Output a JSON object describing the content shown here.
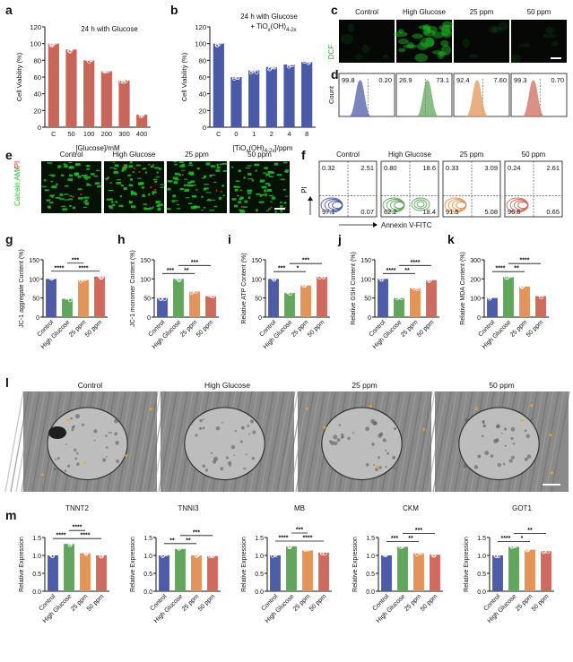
{
  "colors": {
    "red_bar": "#c8665a",
    "blue_bar": "#4a5aa6",
    "control": "#4e5ca8",
    "high_glucose": "#62a65e",
    "ppm25": "#e3945a",
    "ppm50": "#cf6b5e",
    "calcein_green": "#21c229",
    "pi_red": "#d82a2a"
  },
  "panel_letters": {
    "a": "a",
    "b": "b",
    "c": "c",
    "d": "d",
    "e": "e",
    "f": "f",
    "g": "g",
    "h": "h",
    "i": "i",
    "j": "j",
    "k": "k",
    "l": "l",
    "m": "m"
  },
  "groups": [
    "Control",
    "High Glucose",
    "25 ppm",
    "50 ppm"
  ],
  "panel_c": {
    "stain_label": "DCF"
  },
  "panel_d": {
    "ylabel": "Count",
    "values": [
      {
        "left": "99.8",
        "right": "0.20"
      },
      {
        "left": "26.9",
        "right": "73.1"
      },
      {
        "left": "92.4",
        "right": "7.60"
      },
      {
        "left": "99.3",
        "right": "0.70"
      }
    ]
  },
  "panel_e": {
    "stain_label_green": "Calcein AM",
    "stain_sep": "/",
    "stain_label_red": "PI"
  },
  "panel_f": {
    "ylabel": "PI",
    "xlabel": "Annexin V-FITC",
    "quadrants": [
      {
        "ul": "0.32",
        "ur": "2.51",
        "ll": "97.1",
        "lr": "0.07"
      },
      {
        "ul": "0.80",
        "ur": "18.6",
        "ll": "62.2",
        "lr": "18.4"
      },
      {
        "ul": "0.33",
        "ur": "3.09",
        "ll": "91.5",
        "lr": "5.08"
      },
      {
        "ul": "0.24",
        "ur": "2.61",
        "ll": "96.5",
        "lr": "0.65"
      }
    ]
  },
  "panel_l": {
    "labels": [
      "Control",
      "High Glucose",
      "25 ppm",
      "50 ppm"
    ]
  },
  "chart_data": [
    {
      "id": "a",
      "type": "bar",
      "categories": [
        "C",
        "50",
        "100",
        "200",
        "300",
        "400"
      ],
      "values": [
        100,
        93,
        80,
        67,
        56,
        15
      ],
      "annotation": "24 h with Glucose",
      "xlabel": "[Glucose]/mM",
      "ylabel": "Cell Viability (%)",
      "ylim": [
        0,
        120
      ],
      "yticks": [
        0,
        20,
        40,
        60,
        80,
        100,
        120
      ]
    },
    {
      "id": "b",
      "type": "bar",
      "categories": [
        "C",
        "0",
        "1",
        "2",
        "4",
        "8"
      ],
      "values": [
        100,
        60,
        68,
        72,
        75,
        78
      ],
      "annotation_line1": "24 h with Glucose",
      "annotation_line2": "+ TiO",
      "annotation_line2_sub": "x",
      "annotation_line2_tail": "(OH)",
      "annotation_line2_sub2": "4-2x",
      "xlabel": "[TiO",
      "xlabel_sub": "x",
      "xlabel_mid": "(OH)",
      "xlabel_sub2": "4-2x",
      "xlabel_tail": "]/ppm",
      "ylabel": "Cell Viability (%)",
      "ylim": [
        0,
        120
      ],
      "yticks": [
        0,
        20,
        40,
        60,
        80,
        100,
        120
      ]
    },
    {
      "id": "g",
      "type": "bar",
      "categories": [
        "Control",
        "High Glucose",
        "25 ppm",
        "50 ppm"
      ],
      "values": [
        100,
        48,
        97,
        106
      ],
      "ylabel": "JC-1 aggregate Content (%)",
      "ylim": [
        0,
        150
      ],
      "yticks": [
        0,
        50,
        100,
        150
      ],
      "sig": [
        {
          "from": 0,
          "to": 1,
          "label": "****",
          "level": 0
        },
        {
          "from": 1,
          "to": 3,
          "label": "****",
          "level": 0
        },
        {
          "from": 1,
          "to": 2,
          "label": "***",
          "level": 1
        }
      ]
    },
    {
      "id": "h",
      "type": "bar",
      "categories": [
        "Control",
        "High Glucose",
        "25 ppm",
        "50 ppm"
      ],
      "values": [
        50,
        100,
        67,
        55
      ],
      "ylabel": "JC-1 monomer Content (%)",
      "ylim": [
        0,
        150
      ],
      "yticks": [
        0,
        50,
        100,
        150
      ],
      "sig": [
        {
          "from": 0,
          "to": 1,
          "label": "***",
          "level": 0
        },
        {
          "from": 1,
          "to": 2,
          "label": "**",
          "level": 0
        },
        {
          "from": 1,
          "to": 3,
          "label": "***",
          "level": 1
        }
      ]
    },
    {
      "id": "i",
      "type": "bar",
      "categories": [
        "Control",
        "High Glucose",
        "25 ppm",
        "50 ppm"
      ],
      "values": [
        100,
        63,
        83,
        105
      ],
      "ylabel": "Relative ATP Content (%)",
      "ylim": [
        0,
        150
      ],
      "yticks": [
        0,
        50,
        100,
        150
      ],
      "sig": [
        {
          "from": 0,
          "to": 1,
          "label": "***",
          "level": 0
        },
        {
          "from": 1,
          "to": 2,
          "label": "*",
          "level": 0
        },
        {
          "from": 1,
          "to": 3,
          "label": "***",
          "level": 1
        }
      ]
    },
    {
      "id": "j",
      "type": "bar",
      "categories": [
        "Control",
        "High Glucose",
        "25 ppm",
        "50 ppm"
      ],
      "values": [
        100,
        50,
        75,
        97
      ],
      "ylabel": "Relative GSH Content (%)",
      "ylim": [
        0,
        150
      ],
      "yticks": [
        0,
        50,
        100,
        150
      ],
      "sig": [
        {
          "from": 0,
          "to": 1,
          "label": "****",
          "level": 0
        },
        {
          "from": 1,
          "to": 2,
          "label": "**",
          "level": 0
        },
        {
          "from": 1,
          "to": 3,
          "label": "****",
          "level": 1
        }
      ]
    },
    {
      "id": "k",
      "type": "bar",
      "categories": [
        "Control",
        "High Glucose",
        "25 ppm",
        "50 ppm"
      ],
      "values": [
        100,
        210,
        160,
        110
      ],
      "ylabel": "Relative MDA Content (%)",
      "ylim": [
        0,
        300
      ],
      "yticks": [
        0,
        100,
        200,
        300
      ],
      "sig": [
        {
          "from": 0,
          "to": 1,
          "label": "****",
          "level": 0
        },
        {
          "from": 1,
          "to": 2,
          "label": "**",
          "level": 0
        },
        {
          "from": 1,
          "to": 3,
          "label": "****",
          "level": 1
        }
      ]
    },
    {
      "id": "m1",
      "type": "bar",
      "title": "TNNT2",
      "categories": [
        "Control",
        "High Glucose",
        "25 ppm",
        "50 ppm"
      ],
      "values": [
        1.0,
        1.32,
        1.06,
        1.0
      ],
      "ylabel": "Relative Expression",
      "ylim": [
        0,
        1.5
      ],
      "yticks": [
        0.0,
        0.5,
        1.0,
        1.5
      ],
      "sig": [
        {
          "from": 0,
          "to": 1,
          "label": "****",
          "level": 0
        },
        {
          "from": 1,
          "to": 3,
          "label": "****",
          "level": 0
        },
        {
          "from": 1,
          "to": 2,
          "label": "****",
          "level": 1
        }
      ]
    },
    {
      "id": "m2",
      "type": "bar",
      "title": "TNNI3",
      "categories": [
        "Control",
        "High Glucose",
        "25 ppm",
        "50 ppm"
      ],
      "values": [
        1.0,
        1.18,
        1.0,
        0.98
      ],
      "ylabel": "Relative Expression",
      "ylim": [
        0,
        1.5
      ],
      "yticks": [
        0.0,
        0.5,
        1.0,
        1.5
      ],
      "sig": [
        {
          "from": 0,
          "to": 1,
          "label": "**",
          "level": 0
        },
        {
          "from": 1,
          "to": 2,
          "label": "**",
          "level": 0
        },
        {
          "from": 1,
          "to": 3,
          "label": "***",
          "level": 1
        }
      ]
    },
    {
      "id": "m3",
      "type": "bar",
      "title": "MB",
      "categories": [
        "Control",
        "High Glucose",
        "25 ppm",
        "50 ppm"
      ],
      "values": [
        1.0,
        1.25,
        1.14,
        1.08
      ],
      "ylabel": "Relative Expression",
      "ylim": [
        0,
        1.5
      ],
      "yticks": [
        0.0,
        0.5,
        1.0,
        1.5
      ],
      "sig": [
        {
          "from": 0,
          "to": 1,
          "label": "****",
          "level": 0
        },
        {
          "from": 1,
          "to": 3,
          "label": "****",
          "level": 0
        },
        {
          "from": 1,
          "to": 2,
          "label": "***",
          "level": 1
        }
      ]
    },
    {
      "id": "m4",
      "type": "bar",
      "title": "CKM",
      "categories": [
        "Control",
        "High Glucose",
        "25 ppm",
        "50 ppm"
      ],
      "values": [
        1.0,
        1.24,
        1.06,
        1.02
      ],
      "ylabel": "Relative Expression",
      "ylim": [
        0,
        1.5
      ],
      "yticks": [
        0.0,
        0.5,
        1.0,
        1.5
      ],
      "sig": [
        {
          "from": 0,
          "to": 1,
          "label": "***",
          "level": 0
        },
        {
          "from": 1,
          "to": 2,
          "label": "**",
          "level": 0
        },
        {
          "from": 1,
          "to": 3,
          "label": "***",
          "level": 1
        }
      ]
    },
    {
      "id": "m5",
      "type": "bar",
      "title": "GOT1",
      "categories": [
        "Control",
        "High Glucose",
        "25 ppm",
        "50 ppm"
      ],
      "values": [
        1.0,
        1.24,
        1.16,
        1.12
      ],
      "ylabel": "Relative Expression",
      "ylim": [
        0,
        1.5
      ],
      "yticks": [
        0.0,
        0.5,
        1.0,
        1.5
      ],
      "sig": [
        {
          "from": 0,
          "to": 1,
          "label": "****",
          "level": 0
        },
        {
          "from": 1,
          "to": 2,
          "label": "*",
          "level": 0
        },
        {
          "from": 1,
          "to": 3,
          "label": "**",
          "level": 1
        }
      ]
    }
  ]
}
